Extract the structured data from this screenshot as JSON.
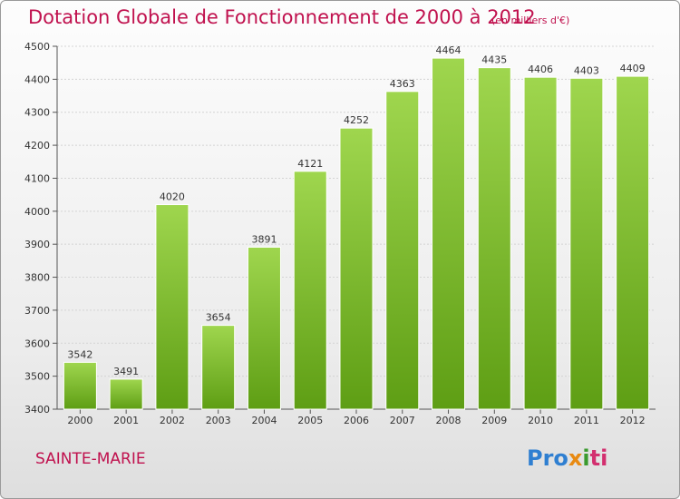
{
  "chart_data": {
    "type": "bar",
    "title": "Dotation Globale de Fonctionnement de 2000 à 2012",
    "unit_note": "(en milliers d'€)",
    "categories": [
      "2000",
      "2001",
      "2002",
      "2003",
      "2004",
      "2005",
      "2006",
      "2007",
      "2008",
      "2009",
      "2010",
      "2011",
      "2012"
    ],
    "values": [
      3542,
      3491,
      4020,
      3654,
      3891,
      4121,
      4252,
      4363,
      4464,
      4435,
      4406,
      4403,
      4409
    ],
    "ylim": [
      3400,
      4500
    ],
    "yticks": [
      3400,
      3500,
      3600,
      3700,
      3800,
      3900,
      4000,
      4100,
      4200,
      4300,
      4400,
      4500
    ],
    "grid": true,
    "bar_color": "#7cbd2a"
  },
  "footer": {
    "city": "SAINTE-MARIE",
    "logo_parts": [
      "Pro",
      "x",
      "i",
      "ti"
    ]
  }
}
